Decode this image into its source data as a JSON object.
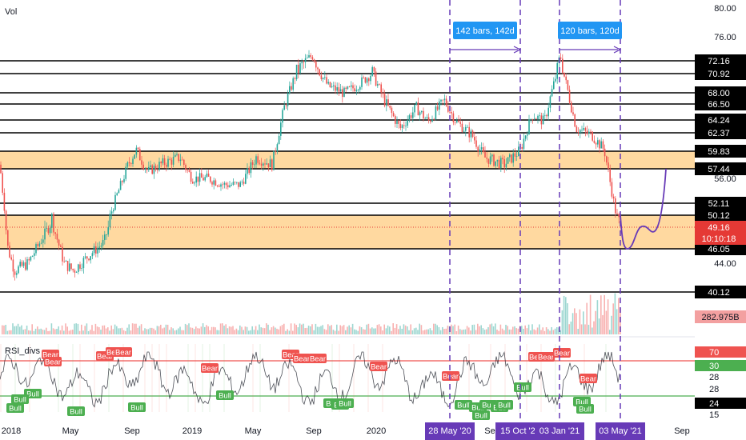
{
  "symbol_label": "Vol",
  "indicator_label": "RSI_divs",
  "colors": {
    "up": "#26a69a",
    "down": "#ef5350",
    "purple": "#673ab7",
    "zone": "#ffcc80",
    "price_badge": "#e53935",
    "bull": "#4caf50",
    "bear": "#ef5350",
    "rsi_line": "#131722",
    "rsi_red": "#ef5350",
    "rsi_green": "#4caf50"
  },
  "chart_data": {
    "type": "candlestick",
    "price_axis": {
      "ticks": [
        "80.00",
        "76.00",
        "56.00",
        "44.00"
      ],
      "tick_values": [
        80,
        76,
        56,
        44
      ],
      "range": [
        41.5,
        80.5
      ]
    },
    "levels": [
      {
        "label": "72.16",
        "value": 72.16
      },
      {
        "label": "70.92",
        "value": 70.92
      },
      {
        "label": "68.00",
        "value": 68.0
      },
      {
        "label": "66.50",
        "value": 66.5
      },
      {
        "label": "64.24",
        "value": 64.24
      },
      {
        "label": "62.37",
        "value": 62.37
      },
      {
        "label": "59.83",
        "value": 59.83
      },
      {
        "label": "57.44",
        "value": 57.44
      },
      {
        "label": "52.11",
        "value": 52.11
      },
      {
        "label": "50.12",
        "value": 50.12
      },
      {
        "label": "46.05",
        "value": 46.05
      },
      {
        "label": "40.12",
        "value": 40.12
      }
    ],
    "zones": [
      {
        "from": 57.44,
        "to": 59.83
      },
      {
        "from": 46.05,
        "to": 50.12
      }
    ],
    "last_price": {
      "label": "49.16",
      "value": 49.16,
      "countdown": "10:10:18"
    },
    "volume_label": "282.975B",
    "x_axis": {
      "ticks": [
        "2018",
        "May",
        "Sep",
        "2019",
        "May",
        "Sep",
        "2020",
        "Se",
        "Jan",
        "Sep"
      ],
      "highlighted": [
        "28 May '20",
        "15 Oct '20",
        "03 Jan '21",
        "03 May '21"
      ]
    },
    "measures": [
      {
        "label": "142 bars, 142d",
        "from": "28 May '20",
        "to": "15 Oct '20"
      },
      {
        "label": "120 bars, 120d",
        "from": "03 Jan '21",
        "to": "03 May '21"
      }
    ],
    "rsi": {
      "title": "RSI_divs",
      "levels": [
        {
          "label": "70",
          "value": 70
        },
        {
          "label": "30",
          "value": 30
        }
      ],
      "ticks": [
        "28",
        "28",
        "15"
      ],
      "current": {
        "label": "24",
        "value": 24
      },
      "bull_label": "Bull",
      "bear_label": "Bear"
    },
    "projection": {
      "direction": "down then up",
      "target_low": 46.05,
      "target_high": 57.44
    }
  }
}
